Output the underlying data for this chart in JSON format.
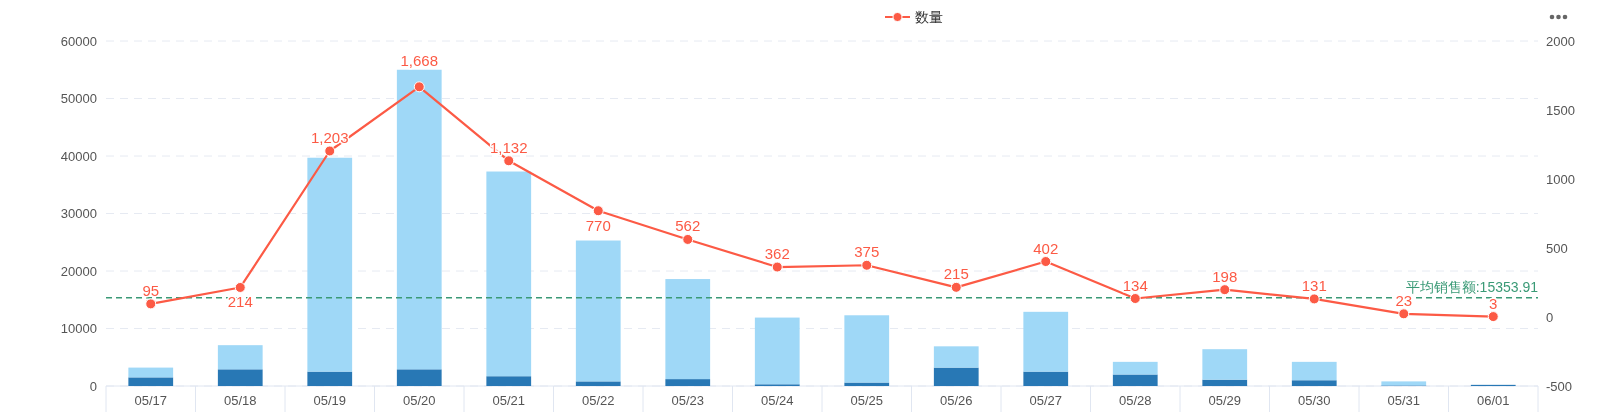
{
  "chart_data": {
    "type": "bar",
    "stacked": true,
    "categories": [
      "05/17",
      "05/18",
      "05/19",
      "05/20",
      "05/21",
      "05/22",
      "05/23",
      "05/24",
      "05/25",
      "05/26",
      "05/27",
      "05/28",
      "05/29",
      "05/30",
      "05/31",
      "06/01"
    ],
    "series": [
      {
        "color": "#2878b5",
        "values": [
          1500,
          2900,
          2500,
          2900,
          1700,
          800,
          1200,
          300,
          600,
          3200,
          2500,
          2000,
          1100,
          1000,
          100,
          200
        ]
      },
      {
        "color": "#9fd8f7",
        "values": [
          1700,
          4200,
          37200,
          52100,
          35600,
          24500,
          17400,
          11600,
          11700,
          3700,
          10400,
          2200,
          5300,
          3200,
          700,
          0
        ]
      },
      {
        "name": "数量",
        "type": "line",
        "axis": "y2",
        "color": "#fc5a45",
        "values": [
          95,
          214,
          1203,
          1668,
          1132,
          770,
          562,
          362,
          375,
          215,
          402,
          134,
          198,
          131,
          23,
          3
        ],
        "value_labels": [
          "95",
          "214",
          "1,203",
          "1,668",
          "1,132",
          "770",
          "562",
          "362",
          "375",
          "215",
          "402",
          "134",
          "198",
          "131",
          "23",
          "3"
        ]
      }
    ],
    "ylim": [
      0,
      60000
    ],
    "yticks": [
      0,
      10000,
      20000,
      30000,
      40000,
      50000,
      60000
    ],
    "y2lim": [
      -500,
      2000
    ],
    "y2ticks": [
      -500,
      0,
      500,
      1000,
      1500,
      2000
    ],
    "grid": "y",
    "legend": "top",
    "marker": "circle",
    "ref_lines": [
      {
        "axis": "y",
        "value": 15353.91,
        "label": "平均销售额:15353.91",
        "color": "#3a9a76",
        "line_style": "dashed"
      }
    ]
  }
}
